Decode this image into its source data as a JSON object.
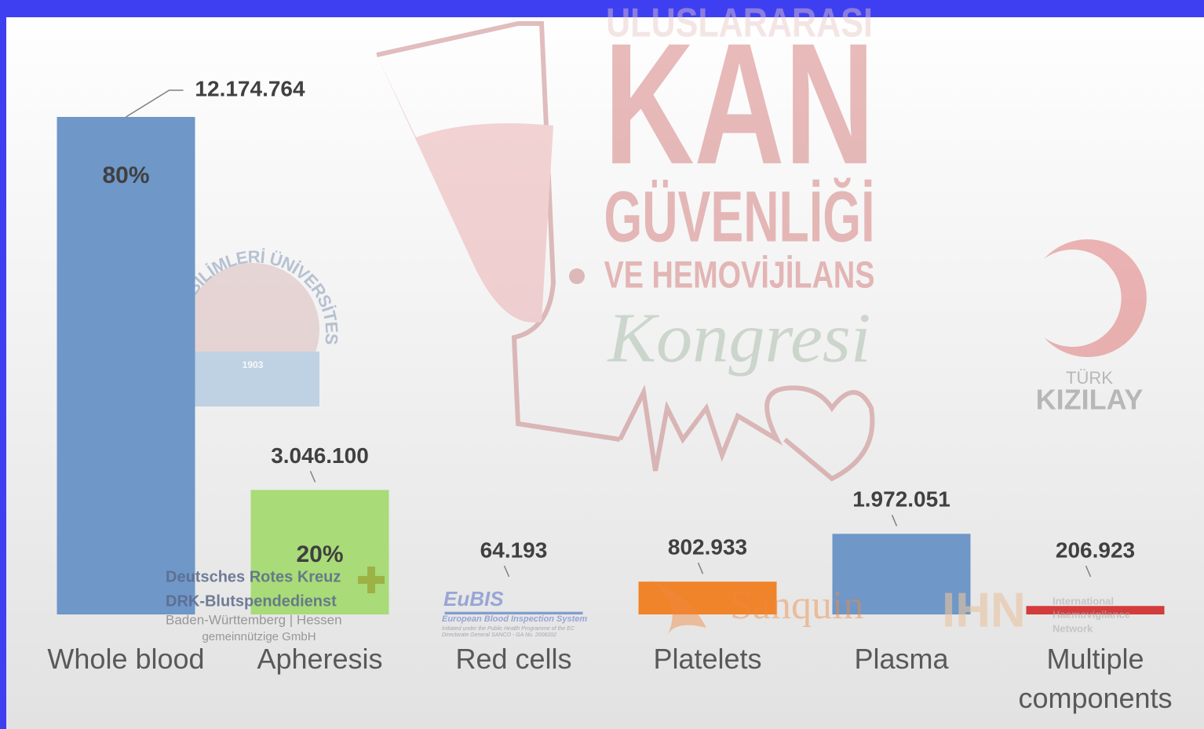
{
  "chart_data": {
    "type": "bar",
    "categories": [
      "Whole blood",
      "Apheresis",
      "Red cells",
      "Platelets",
      "Plasma",
      "Multiple components"
    ],
    "values": [
      12174764,
      3046100,
      64193,
      802933,
      1972051,
      206923
    ],
    "value_labels": [
      "12.174.764",
      "3.046.100",
      "64.193",
      "802.933",
      "1.972.051",
      "206.923"
    ],
    "colors": [
      "#6f97c8",
      "#a9db78",
      "#7f9fcf",
      "#f0842a",
      "#6f97c8",
      "#d23c3c"
    ],
    "percent_labels": [
      "80%",
      "20%",
      null,
      null,
      null,
      null
    ]
  },
  "background": {
    "congress": {
      "line1": "ULUSLARARASI",
      "line2": "KAN",
      "line3": "GÜVENLİĞİ",
      "line4": "VE HEMOVİJİLANS",
      "line5": "Kongresi"
    },
    "university": {
      "name": "SAĞLIK BİLİMLERİ ÜNİVERSİTESİ",
      "year": "1903"
    },
    "kizilay": {
      "line1": "TÜRK",
      "line2": "KIZILAY"
    },
    "drk": [
      "Deutsches Rotes Kreuz",
      "DRK-Blutspendedienst",
      "Baden-Württemberg | Hessen",
      "gemeinnützige GmbH"
    ],
    "eubis": {
      "name": "EuBIS",
      "subtitle": "European Blood Inspection System",
      "note": [
        "Initiated under the Public Health Programme of the EC",
        "Directorate General SANCO - GA No. 2006202"
      ]
    },
    "sanquin": "Sanquin",
    "ihn": {
      "name": "IHN",
      "lines": [
        "International",
        "Haemovigilance",
        "Network"
      ]
    }
  }
}
